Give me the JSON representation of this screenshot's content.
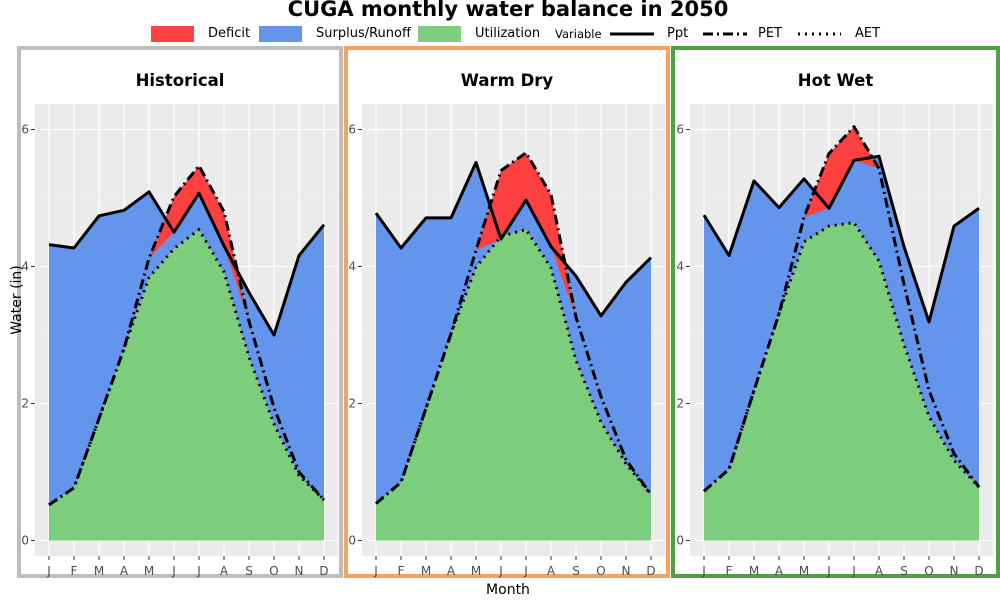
{
  "chart_data": {
    "type": "area",
    "title": "CUGA monthly water balance in 2050",
    "xlabel": "Month",
    "ylabel": "Water (in)",
    "ylim": [
      0,
      6.3
    ],
    "yticks": [
      0,
      2,
      4,
      6
    ],
    "categories": [
      "J",
      "F",
      "M",
      "A",
      "M",
      "J",
      "J",
      "A",
      "S",
      "O",
      "N",
      "D"
    ],
    "grid": true,
    "legend_position": "top",
    "legend": {
      "fill_entries": [
        {
          "label": "Deficit",
          "color": "#FF4040"
        },
        {
          "label": "Surplus/Runoff",
          "color": "#6495ED"
        },
        {
          "label": "Utilization",
          "color": "#7CCD7C"
        }
      ],
      "line_title": "Variable",
      "line_entries": [
        {
          "label": "Ppt",
          "style": "solid"
        },
        {
          "label": "PET",
          "style": "dashdot"
        },
        {
          "label": "AET",
          "style": "dotted"
        }
      ]
    },
    "panels": [
      {
        "title": "Historical",
        "border_color": "#BEBEBE",
        "series": [
          {
            "name": "Ppt",
            "values": [
              4.32,
              4.27,
              4.74,
              4.82,
              5.09,
              4.5,
              5.07,
              4.3,
              3.62,
              3.0,
              4.16,
              4.61
            ]
          },
          {
            "name": "PET",
            "values": [
              0.52,
              0.77,
              1.78,
              2.8,
              4.12,
              5.02,
              5.47,
              4.8,
              3.2,
              1.94,
              1.0,
              0.59
            ]
          },
          {
            "name": "AET",
            "values": [
              0.52,
              0.77,
              1.78,
              2.8,
              3.84,
              4.26,
              4.54,
              3.92,
              2.68,
              1.7,
              0.95,
              0.59
            ]
          }
        ]
      },
      {
        "title": "Warm Dry",
        "border_color": "#F4A460",
        "series": [
          {
            "name": "Ppt",
            "values": [
              4.78,
              4.27,
              4.71,
              4.71,
              5.52,
              4.4,
              4.97,
              4.29,
              3.86,
              3.28,
              3.77,
              4.13
            ]
          },
          {
            "name": "PET",
            "values": [
              0.54,
              0.85,
              1.93,
              3.02,
              4.24,
              5.4,
              5.66,
              5.05,
              3.26,
              2.1,
              1.18,
              0.67
            ]
          },
          {
            "name": "AET",
            "values": [
              0.54,
              0.85,
              1.93,
              3.02,
              3.99,
              4.44,
              4.54,
              3.98,
              2.63,
              1.73,
              1.12,
              0.67
            ]
          }
        ]
      },
      {
        "title": "Hot Wet",
        "border_color": "#4DA33F",
        "series": [
          {
            "name": "Ppt",
            "values": [
              4.75,
              4.16,
              5.25,
              4.86,
              5.28,
              4.85,
              5.55,
              5.61,
              4.29,
              3.19,
              4.59,
              4.85
            ]
          },
          {
            "name": "PET",
            "values": [
              0.72,
              1.04,
              2.19,
              3.31,
              4.72,
              5.65,
              6.04,
              5.43,
              3.74,
              2.19,
              1.27,
              0.78
            ]
          },
          {
            "name": "AET",
            "values": [
              0.72,
              1.04,
              2.19,
              3.31,
              4.36,
              4.59,
              4.64,
              4.08,
              2.86,
              1.81,
              1.17,
              0.78
            ]
          }
        ]
      }
    ]
  }
}
